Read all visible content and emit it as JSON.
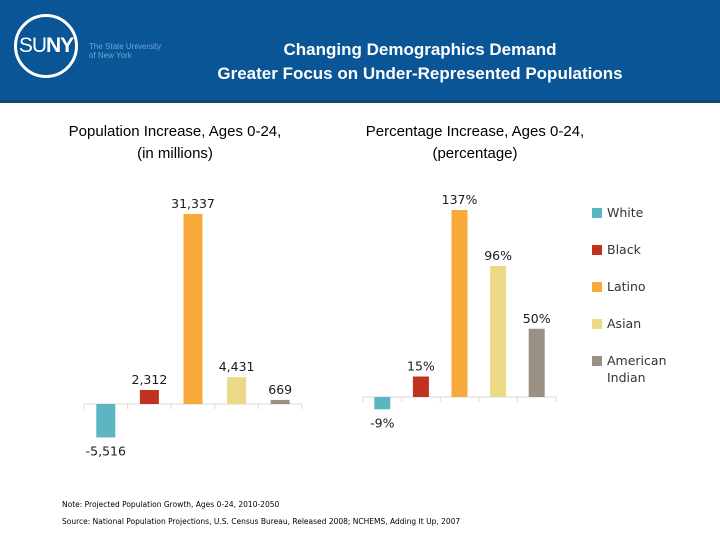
{
  "header": {
    "logo_text_light": "SU",
    "logo_text_bold": "NY",
    "logo_sub_line1": "The State University",
    "logo_sub_line2": "of New York",
    "title_line1": "Changing Demographics Demand",
    "title_line2": "Greater Focus on Under-Represented Populations"
  },
  "legend": [
    {
      "label": "White",
      "color": "#5bb5c2"
    },
    {
      "label": "Black",
      "color": "#c0321e"
    },
    {
      "label": "Latino",
      "color": "#f7a93a"
    },
    {
      "label": "Asian",
      "color": "#ebd987"
    },
    {
      "label": "American Indian",
      "color": "#9a9184"
    }
  ],
  "chart_data": [
    {
      "type": "bar",
      "title": "Population Increase, Ages 0-24,",
      "subtitle": "(in millions)",
      "categories": [
        "White",
        "Black",
        "Latino",
        "Asian",
        "American Indian"
      ],
      "values": [
        -5516,
        2312,
        31337,
        4431,
        669
      ],
      "data_labels": [
        "-5,516",
        "2,312",
        "31,337",
        "4,431",
        "669"
      ],
      "colors": [
        "#5bb5c2",
        "#c0321e",
        "#f7a93a",
        "#ebd987",
        "#9a9184"
      ],
      "xlabel": "",
      "ylabel": "",
      "ylim": [
        -5516,
        31337
      ],
      "grid": false,
      "legend": "right"
    },
    {
      "type": "bar",
      "title": "Percentage Increase, Ages 0-24,",
      "subtitle": "(percentage)",
      "categories": [
        "White",
        "Black",
        "Latino",
        "Asian",
        "American Indian"
      ],
      "values": [
        -9,
        15,
        137,
        96,
        50
      ],
      "data_labels": [
        "-9%",
        "15%",
        "137%",
        "96%",
        "50%"
      ],
      "colors": [
        "#5bb5c2",
        "#c0321e",
        "#f7a93a",
        "#ebd987",
        "#9a9184"
      ],
      "xlabel": "",
      "ylabel": "",
      "ylim": [
        -9,
        137
      ],
      "grid": false,
      "legend": "right"
    }
  ],
  "notes": {
    "note": "Note: Projected Population Growth, Ages 0-24, 2010-2050",
    "source": "Source: National Population Projections, U.S. Census Bureau, Released 2008; NCHEMS, Adding It Up, 2007"
  }
}
